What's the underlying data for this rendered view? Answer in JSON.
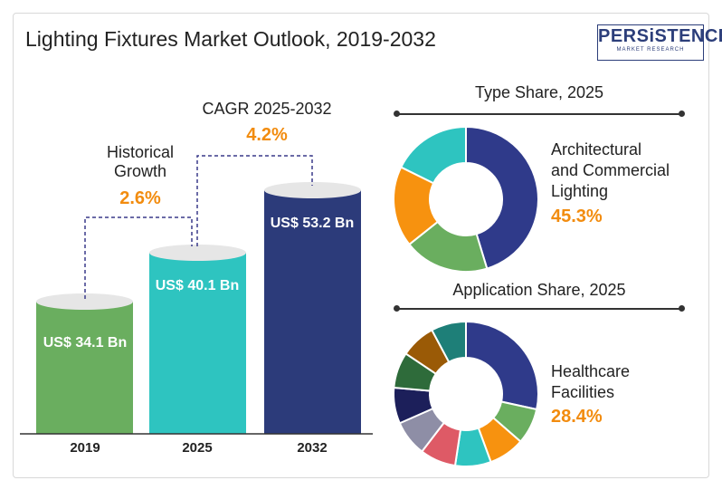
{
  "title": "Lighting Fixtures Market Outlook, 2019-2032",
  "logo": {
    "main": "PERSiSTENCE",
    "sub": "MARKET RESEARCH"
  },
  "chart_data": [
    {
      "type": "bar",
      "categories": [
        "2019",
        "2025",
        "2032"
      ],
      "values": [
        34.1,
        40.1,
        53.2
      ],
      "value_labels": [
        "US$ 34.1 Bn",
        "US$ 40.1 Bn",
        "US$ 53.2 Bn"
      ],
      "colors": [
        "#6aae5f",
        "#2ec4c0",
        "#2c3b7a"
      ],
      "annotations": [
        {
          "label_1": "Historical",
          "label_2": "Growth",
          "value": "2.6%"
        },
        {
          "label": "CAGR 2025-2032",
          "value": "4.2%"
        }
      ]
    },
    {
      "type": "pie",
      "title": "Type Share, 2025",
      "values": [
        45.3,
        19.0,
        18.0,
        17.7
      ],
      "colors": [
        "#2f3a8a",
        "#6aae5f",
        "#f7920f",
        "#2ec4c0"
      ],
      "highlight_label": "Architectural and Commercial Lighting",
      "highlight_lines": [
        "Architectural",
        "and Commercial",
        "Lighting"
      ],
      "highlight_value": "45.3%"
    },
    {
      "type": "pie",
      "title": "Application Share, 2025",
      "values": [
        28.4,
        8.0,
        8.0,
        8.0,
        8.0,
        8.0,
        8.0,
        8.0,
        7.8,
        7.8
      ],
      "colors": [
        "#2f3a8a",
        "#6aae5f",
        "#f7920f",
        "#2ec4c0",
        "#de5a66",
        "#8e8ea6",
        "#1c1f5a",
        "#2e6b3a",
        "#9a5a06",
        "#1e7f78"
      ],
      "highlight_lines": [
        "Healthcare",
        "Facilities"
      ],
      "highlight_value": "28.4%"
    }
  ]
}
